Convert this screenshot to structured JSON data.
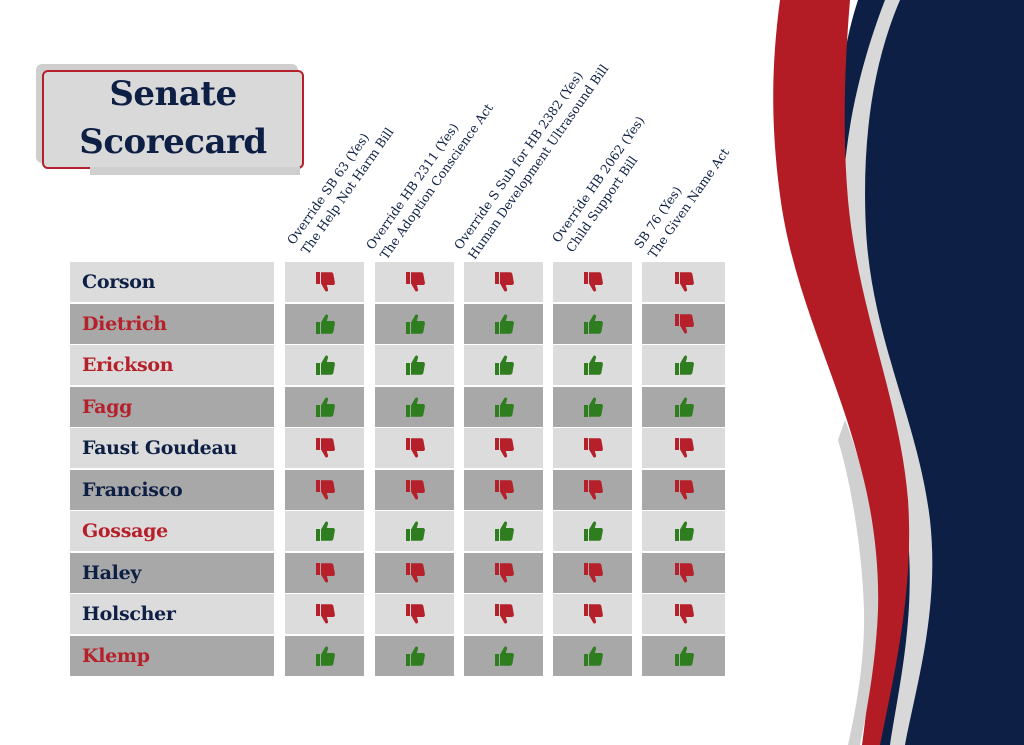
{
  "title": {
    "line1": "Senate",
    "line2": "Scorecard"
  },
  "colors": {
    "navy": "#0d1f44",
    "red": "#b5202a",
    "green": "#2e7d1e",
    "light_row": "#dcdcdc",
    "dark_row": "#a8a8a8"
  },
  "bills": [
    {
      "line1": "Override SB 63 (Yes)",
      "line2": "The Help Not Harm Bill"
    },
    {
      "line1": "Override HB 2311 (Yes)",
      "line2": "The Adoption Conscience Act"
    },
    {
      "line1": "Override S Sub for HB 2382 (Yes)",
      "line2": "Human Development Ultrasound Bill"
    },
    {
      "line1": "Override HB 2062 (Yes)",
      "line2": "Child Support Bill"
    },
    {
      "line1": "SB 76 (Yes)",
      "line2": "The Given Name Act"
    }
  ],
  "senators": [
    {
      "name": "Corson",
      "party_color": "#0d1f44",
      "votes": [
        "down",
        "down",
        "down",
        "down",
        "down"
      ]
    },
    {
      "name": "Dietrich",
      "party_color": "#b5202a",
      "votes": [
        "up",
        "up",
        "up",
        "up",
        "down"
      ]
    },
    {
      "name": "Erickson",
      "party_color": "#b5202a",
      "votes": [
        "up",
        "up",
        "up",
        "up",
        "up"
      ]
    },
    {
      "name": "Fagg",
      "party_color": "#b5202a",
      "votes": [
        "up",
        "up",
        "up",
        "up",
        "up"
      ]
    },
    {
      "name": "Faust Goudeau",
      "party_color": "#0d1f44",
      "votes": [
        "down",
        "down",
        "down",
        "down",
        "down"
      ]
    },
    {
      "name": "Francisco",
      "party_color": "#0d1f44",
      "votes": [
        "down",
        "down",
        "down",
        "down",
        "down"
      ]
    },
    {
      "name": "Gossage",
      "party_color": "#b5202a",
      "votes": [
        "up",
        "up",
        "up",
        "up",
        "up"
      ]
    },
    {
      "name": "Haley",
      "party_color": "#0d1f44",
      "votes": [
        "down",
        "down",
        "down",
        "down",
        "down"
      ]
    },
    {
      "name": "Holscher",
      "party_color": "#0d1f44",
      "votes": [
        "down",
        "down",
        "down",
        "down",
        "down"
      ]
    },
    {
      "name": "Klemp",
      "party_color": "#b5202a",
      "votes": [
        "up",
        "up",
        "up",
        "up",
        "up"
      ]
    }
  ],
  "icons": {
    "up": "thumbs-up-icon",
    "down": "thumbs-down-icon"
  }
}
